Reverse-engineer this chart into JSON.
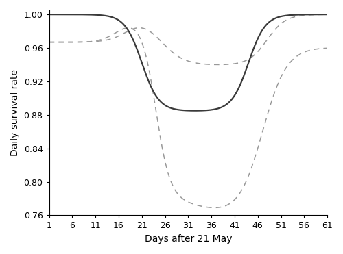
{
  "xlabel": "Days after 21 May",
  "ylabel": "Daily survival rate",
  "xticks": [
    1,
    6,
    11,
    16,
    21,
    26,
    31,
    36,
    41,
    46,
    51,
    56,
    61
  ],
  "xlim": [
    1,
    61
  ],
  "ylim": [
    0.76,
    1.005
  ],
  "yticks": [
    0.76,
    0.8,
    0.84,
    0.88,
    0.92,
    0.96,
    1.0
  ],
  "line_color": "#3a3a3a",
  "ci_color": "#999999",
  "background_color": "#ffffff",
  "figsize": [
    5.0,
    3.71
  ],
  "dpi": 100
}
